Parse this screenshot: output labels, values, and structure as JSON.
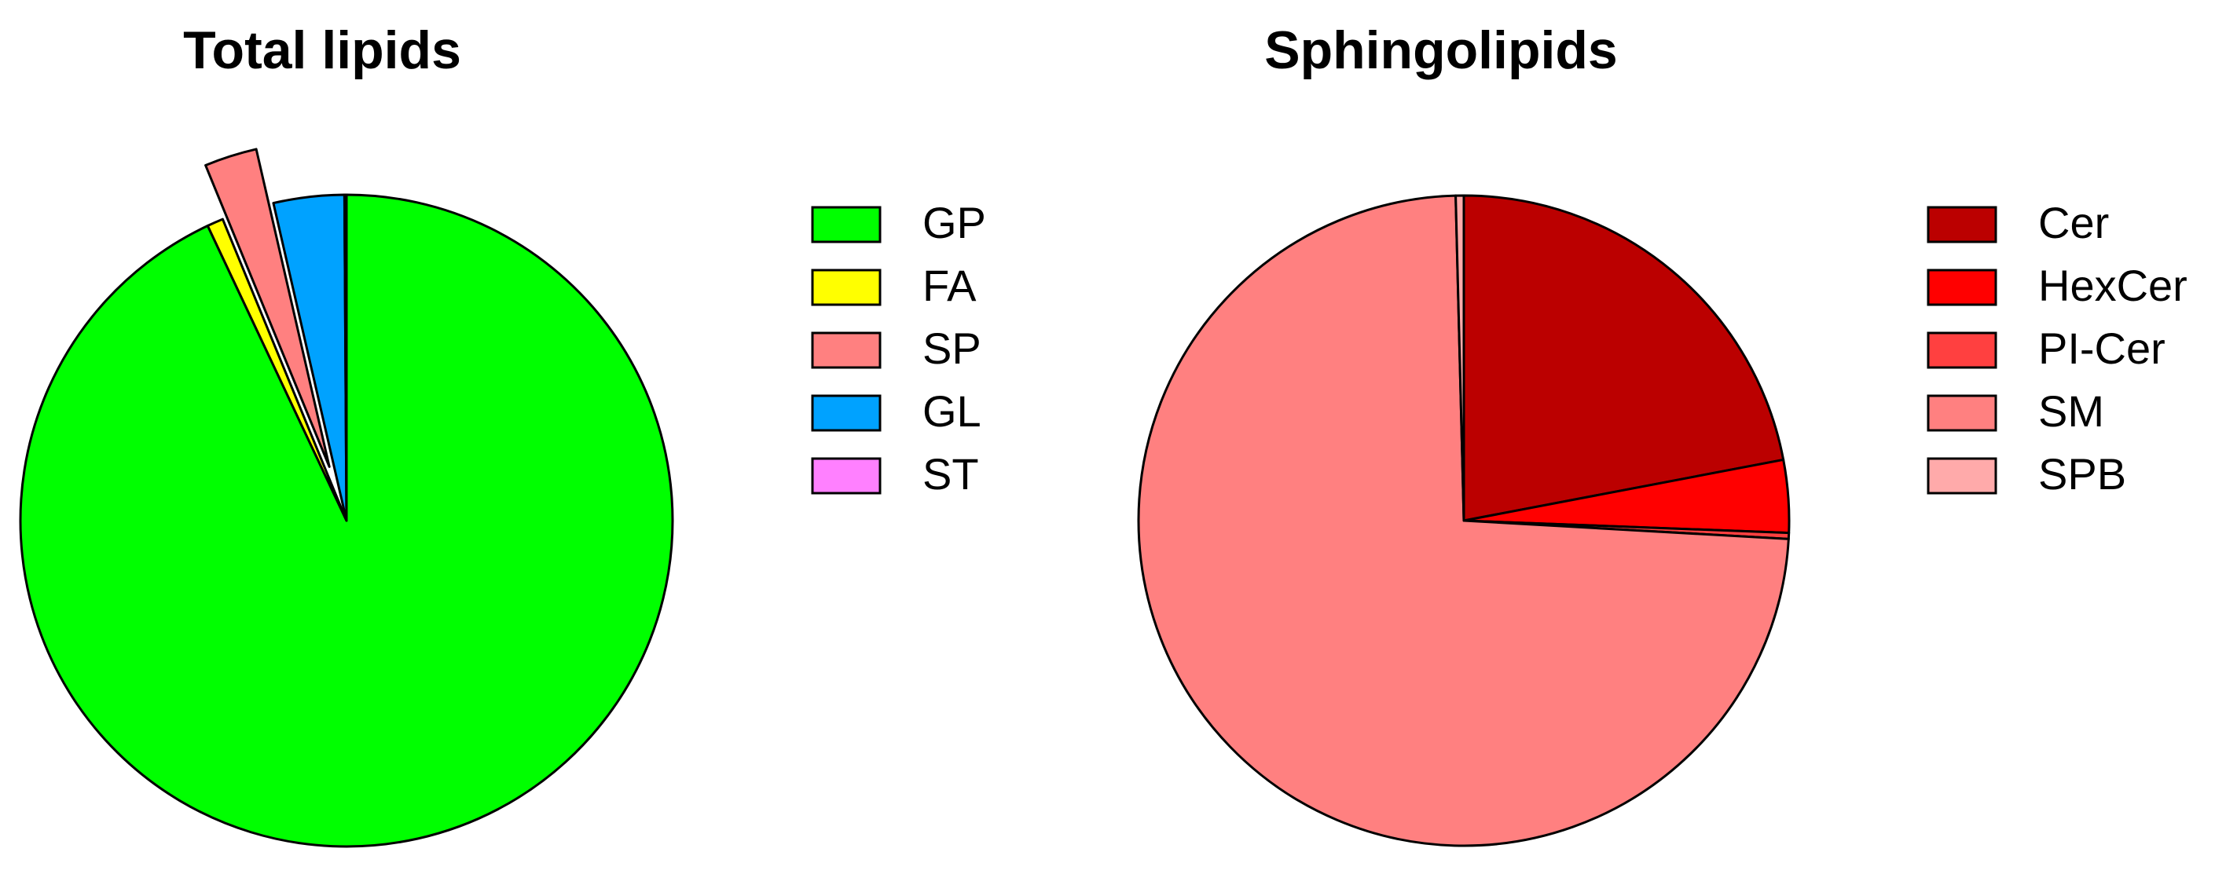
{
  "chart_data": [
    {
      "type": "pie",
      "title": "Total lipids",
      "categories": [
        "GP",
        "FA",
        "SP",
        "GL",
        "ST"
      ],
      "values": [
        93,
        0.8,
        2.6,
        3.5,
        0.1
      ],
      "colors": [
        "#00ff00",
        "#ffff00",
        "#ff8080",
        "#00a2ff",
        "#ff80ff"
      ],
      "explode": [
        0,
        0,
        1,
        0,
        0
      ]
    },
    {
      "type": "pie",
      "title": "Sphingolipids",
      "categories": [
        "Cer",
        "HexCer",
        "PI-Cer",
        "SM",
        "SPB"
      ],
      "values": [
        22,
        3.6,
        0.3,
        73.7,
        0.4
      ],
      "colors": [
        "#bb0000",
        "#ff0000",
        "#ff4040",
        "#ff8080",
        "#ffaaaa"
      ],
      "explode": [
        0,
        0,
        0,
        0,
        0
      ]
    }
  ]
}
